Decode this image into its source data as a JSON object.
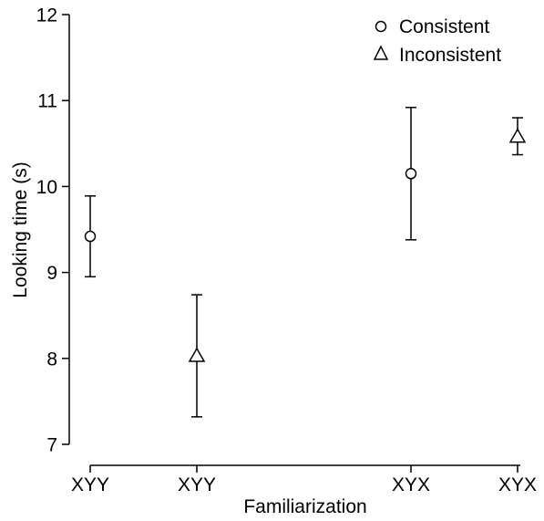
{
  "chart_data": {
    "type": "scatter",
    "xlabel": "Familiarization",
    "ylabel": "Looking time (s)",
    "ylim": [
      7,
      12
    ],
    "yticks": [
      7,
      8,
      9,
      10,
      11,
      12
    ],
    "categories": [
      "XYY",
      "XYY",
      "XYX",
      "XYX"
    ],
    "legend_position": "top-right",
    "series": [
      {
        "name": "Consistent",
        "marker": "circle",
        "points": [
          {
            "category_index": 0,
            "y": 9.42,
            "err_low": 8.95,
            "err_high": 9.89
          },
          {
            "category_index": 2,
            "y": 10.15,
            "err_low": 9.38,
            "err_high": 10.92
          }
        ]
      },
      {
        "name": "Inconsistent",
        "marker": "triangle",
        "points": [
          {
            "category_index": 1,
            "y": 8.03,
            "err_low": 7.32,
            "err_high": 8.74
          },
          {
            "category_index": 3,
            "y": 10.58,
            "err_low": 10.37,
            "err_high": 10.8
          }
        ]
      }
    ]
  }
}
